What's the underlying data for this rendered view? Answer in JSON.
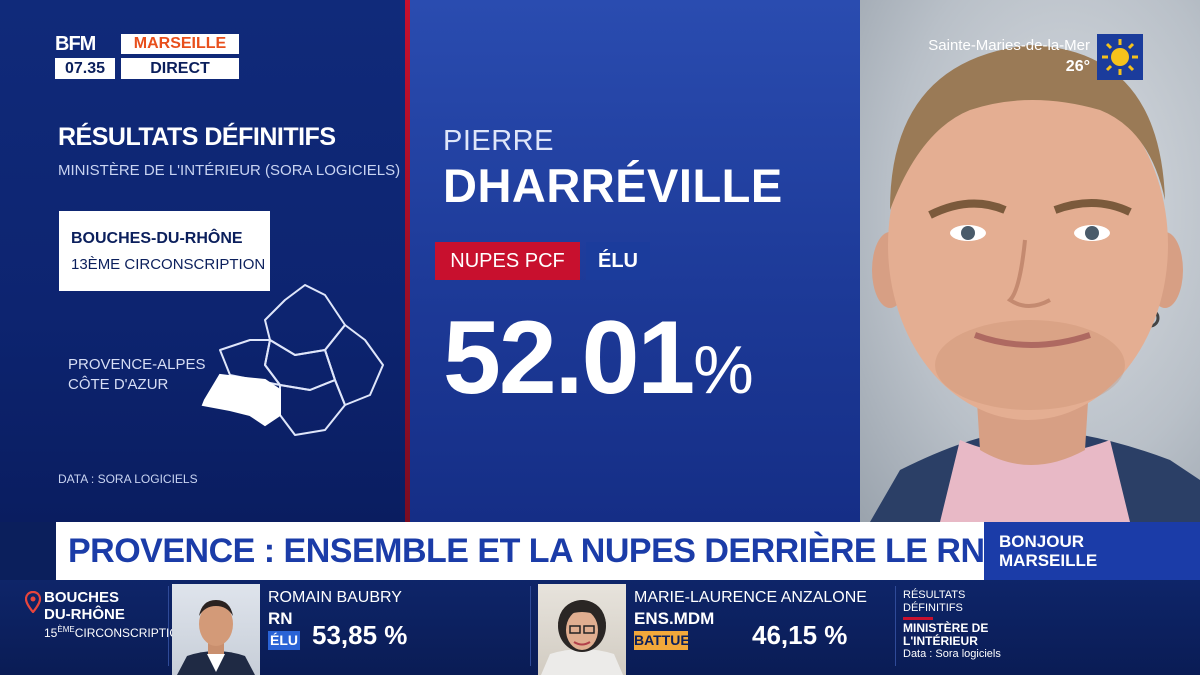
{
  "logo": {
    "brand": "BFM",
    "city": "MARSEILLE",
    "time": "07.35",
    "live": "DIRECT"
  },
  "weather": {
    "place": "Sainte-Maries-de-la-Mer",
    "temp": "26°",
    "icon": "sun-icon"
  },
  "results_panel": {
    "title": "RÉSULTATS DÉFINITIFS",
    "source": "MINISTÈRE DE L'INTÉRIEUR (SORA LOGICIELS)",
    "department": "BOUCHES-DU-RHÔNE",
    "constituency": "13ÈME CIRCONSCRIPTION",
    "region": [
      "PROVENCE-ALPES",
      "CÔTE D'AZUR"
    ],
    "data_note": "DATA : SORA LOGICIELS"
  },
  "candidate": {
    "first_name": "PIERRE",
    "last_name": "DHARRÉVILLE",
    "party": "NUPES PCF",
    "status": "ÉLU",
    "score_number": "52.01",
    "score_unit": "%"
  },
  "headline": "PROVENCE : ENSEMBLE ET LA NUPES DERRIÈRE LE RN",
  "show": [
    "BONJOUR",
    "MARSEILLE"
  ],
  "ticker": {
    "department": [
      "BOUCHES",
      "DU-RHÔNE"
    ],
    "constituency_num": "15",
    "constituency_sup": "ÈME",
    "constituency_label": "CIRCONSCRIPTION",
    "candidates": [
      {
        "name": "ROMAIN BAUBRY",
        "party": "RN",
        "status": "ÉLU",
        "score": "53,85 %",
        "status_bg": "#2a63d6",
        "status_fg": "#ffffff"
      },
      {
        "name": "MARIE-LAURENCE ANZALONE",
        "party": "ENS.MDM",
        "status": "BATTUE",
        "score": "46,15 %",
        "status_bg": "#f2a83a",
        "status_fg": "#0b1f5c"
      }
    ],
    "source": [
      "RÉSULTATS",
      "DÉFINITIFS",
      "MINISTÈRE DE",
      "L'INTÉRIEUR",
      "Data : Sora logiciels"
    ]
  },
  "colors": {
    "navy": "#0b1f5c",
    "accent_red": "#c8102e",
    "accent_blue": "#1b3ca8",
    "city_orange": "#e84f1c"
  }
}
